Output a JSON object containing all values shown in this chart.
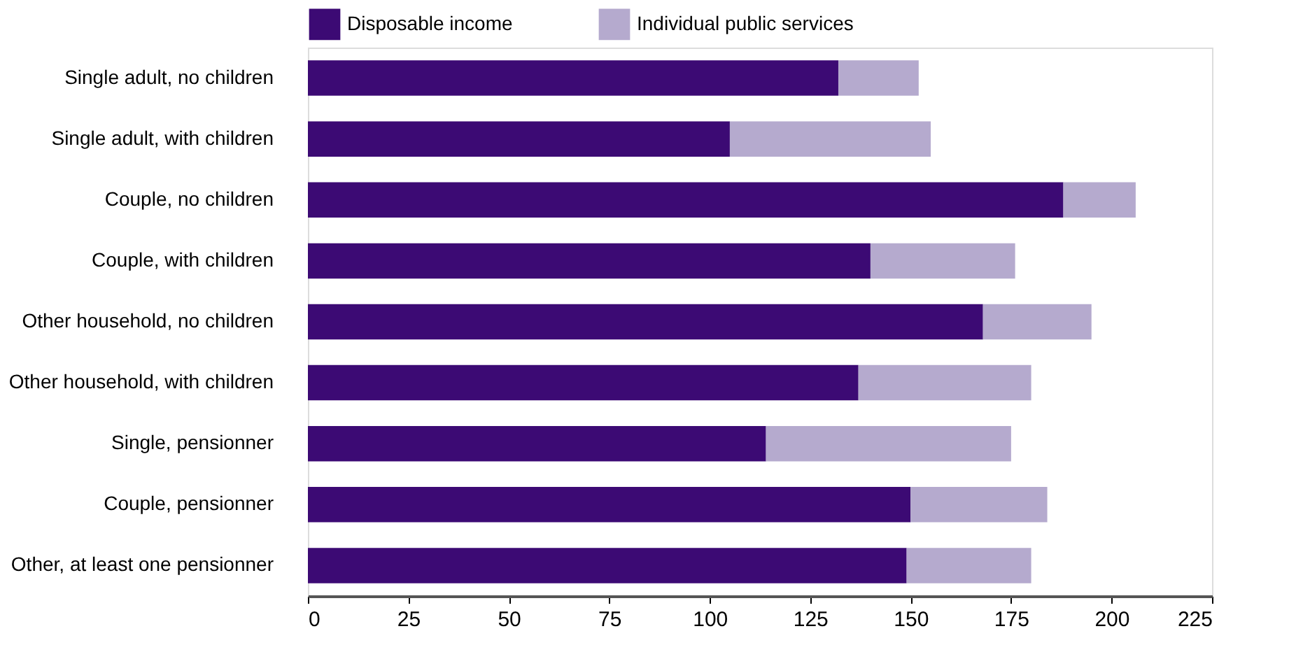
{
  "chart_data": {
    "type": "bar",
    "orientation": "horizontal",
    "stacked": true,
    "categories": [
      "Single adult, no children",
      "Single adult, with children",
      "Couple, no children",
      "Couple, with children",
      "Other household, no children",
      "Other household, with children",
      "Single, pensionner",
      "Couple, pensionner",
      "Other, at least one pensionner"
    ],
    "series": [
      {
        "name": "Disposable income",
        "color": "#3c0a74",
        "values": [
          132,
          105,
          188,
          140,
          168,
          137,
          114,
          150,
          149
        ]
      },
      {
        "name": "Individual public services",
        "color": "#b5aace",
        "values": [
          20,
          50,
          18,
          36,
          27,
          43,
          61,
          34,
          31
        ]
      }
    ],
    "xlim": [
      0,
      225
    ],
    "xticks": [
      0,
      25,
      50,
      75,
      100,
      125,
      150,
      175,
      200,
      225
    ],
    "grid": false,
    "legend": "top"
  }
}
